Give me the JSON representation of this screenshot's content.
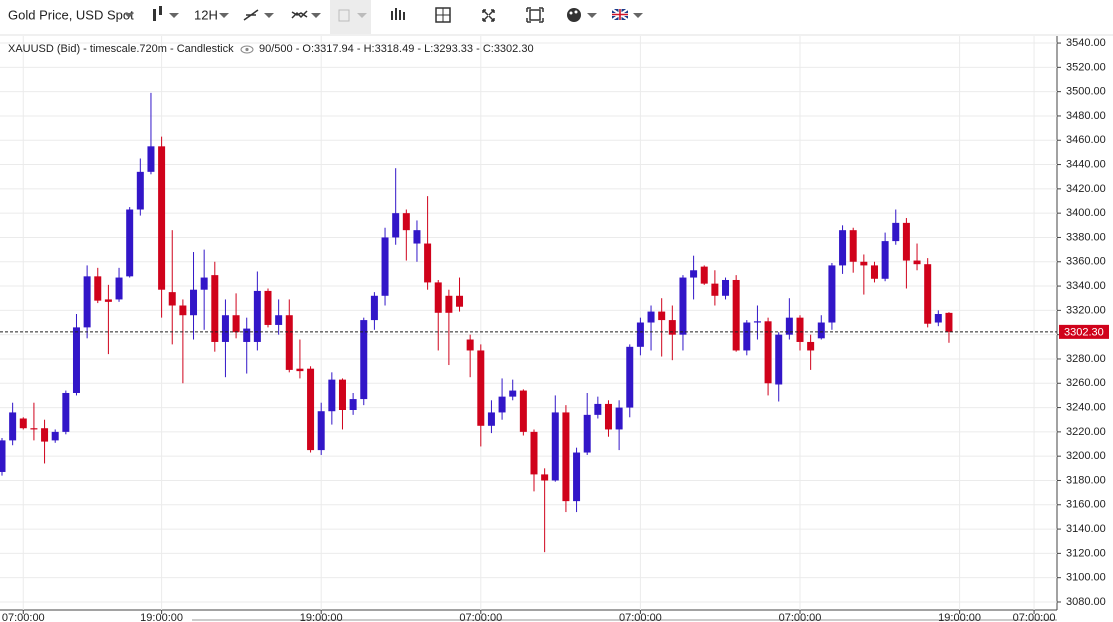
{
  "toolbar": {
    "title": "Gold Price, USD Spot",
    "timeframe": "12H"
  },
  "info": {
    "prefix": "XAUUSD (Bid) - timescale.720m - Candlestick",
    "stats": "90/500 - O:3317.94 - H:3318.49 - L:3293.33 - C:3302.30"
  },
  "chart_data": {
    "type": "candlestick",
    "categories": [
      null,
      null,
      "07:00:00",
      null,
      null,
      null,
      null,
      null,
      null,
      null,
      null,
      null,
      null,
      null,
      null,
      "19:00:00",
      null,
      null,
      null,
      null,
      null,
      null,
      null,
      null,
      null,
      null,
      null,
      null,
      null,
      null,
      "19:00:00",
      null,
      null,
      null,
      null,
      null,
      null,
      null,
      null,
      null,
      null,
      null,
      null,
      null,
      null,
      "07:00:00",
      null,
      null,
      null,
      null,
      null,
      null,
      null,
      null,
      null,
      null,
      null,
      null,
      null,
      null,
      "07:00:00",
      null,
      null,
      null,
      null,
      null,
      null,
      null,
      null,
      null,
      null,
      null,
      null,
      null,
      null,
      "07:00:00",
      null,
      null,
      null,
      null,
      null,
      null,
      null,
      null,
      null,
      null,
      null,
      null,
      null,
      null,
      "19:00:00",
      null,
      null,
      null,
      null,
      null,
      null,
      "07:00:00"
    ],
    "open": [
      3187,
      3213,
      3231,
      3223,
      3223,
      3213,
      3220,
      3252,
      3306,
      3348,
      3329,
      3329,
      3348,
      3403,
      3434,
      3455,
      3335,
      3324,
      3316,
      3337,
      3349,
      3294,
      3316,
      3294,
      3294,
      3336,
      3308,
      3316,
      3272,
      3272,
      3205,
      3237,
      3263,
      3238,
      3247,
      3312,
      3332,
      3380,
      3400,
      3375,
      3375,
      3343,
      3332,
      3332,
      3296,
      3287,
      3225,
      3236,
      3249,
      3254,
      3220,
      3185,
      3180,
      3236,
      3163,
      3203,
      3234,
      3243,
      3222,
      3240,
      3290,
      3310,
      3319,
      3312,
      3300,
      3347,
      3356,
      3342,
      3332,
      3345,
      3287,
      3310,
      3311,
      3259,
      3300,
      3314,
      3294,
      3297,
      3310,
      3357,
      3386,
      3360,
      3357,
      3346,
      3377,
      3392,
      3361,
      3358,
      3310,
      3317.94,
      null,
      null,
      null,
      null,
      null,
      null,
      null,
      null
    ],
    "high": [
      3215,
      3244,
      3232,
      3244,
      3230,
      3222,
      3254,
      3317,
      3357,
      3355,
      3341,
      3355,
      3405,
      3445,
      3499,
      3463,
      3386,
      3329,
      3368,
      3370,
      3360,
      3329,
      3334,
      3314,
      3352,
      3338,
      3329,
      3329,
      3296,
      3274,
      3244,
      3269,
      3264,
      3252,
      3314,
      3335,
      3388,
      3437,
      3403,
      3394,
      3414,
      3345,
      3337,
      3347,
      3300,
      3292,
      3246,
      3264,
      3263,
      3255,
      3222,
      3190,
      3250,
      3242,
      3207,
      3252,
      3249,
      3246,
      3246,
      3292,
      3314,
      3324,
      3330,
      3324,
      3349,
      3365,
      3357,
      3353,
      3347,
      3349,
      3312,
      3324,
      3314,
      3302,
      3330,
      3316,
      3300,
      3316,
      3359,
      3390,
      3388,
      3366,
      3360,
      3384,
      3403,
      3396,
      3375,
      3363,
      3320,
      3318.49,
      null,
      null,
      null,
      null,
      null,
      null,
      null,
      null
    ],
    "low": [
      3184,
      3209,
      3222,
      3213,
      3194,
      3211,
      3218,
      3250,
      3297,
      3326,
      3284,
      3327,
      3347,
      3398,
      3432,
      3314,
      3292,
      3260,
      3296,
      3304,
      3286,
      3265,
      3297,
      3268,
      3287,
      3306,
      3300,
      3269,
      3264,
      3203,
      3201,
      3226,
      3222,
      3234,
      3242,
      3304,
      3324,
      3374,
      3361,
      3360,
      3337,
      3287,
      3275,
      3319,
      3265,
      3208,
      3219,
      3230,
      3246,
      3217,
      3171,
      3121,
      3179,
      3154,
      3154,
      3201,
      3231,
      3216,
      3205,
      3232,
      3283,
      3287,
      3282,
      3279,
      3287,
      3329,
      3341,
      3324,
      3329,
      3286,
      3283,
      3296,
      3250,
      3245,
      3296,
      3287,
      3271,
      3296,
      3304,
      3350,
      3351,
      3333,
      3343,
      3344,
      3374,
      3338,
      3353,
      3306,
      3307,
      3293.33,
      null,
      null,
      null,
      null,
      null,
      null,
      null,
      null
    ],
    "close": [
      3213,
      3236,
      3223,
      3222,
      3212,
      3220,
      3252,
      3306,
      3348,
      3328,
      3327,
      3347,
      3403,
      3434,
      3455,
      3337,
      3324,
      3316,
      3337,
      3347,
      3294,
      3316,
      3302,
      3305,
      3336,
      3308,
      3316,
      3271,
      3270,
      3205,
      3237,
      3263,
      3238,
      3247,
      3312,
      3332,
      3380,
      3400,
      3386,
      3386,
      3343,
      3318,
      3318,
      3323,
      3287,
      3225,
      3236,
      3249,
      3254,
      3220,
      3185,
      3180,
      3236,
      3163,
      3203,
      3234,
      3243,
      3222,
      3240,
      3290,
      3310,
      3319,
      3312,
      3300,
      3347,
      3353,
      3342,
      3332,
      3345,
      3287,
      3310,
      3311,
      3260,
      3300,
      3314,
      3294,
      3287,
      3310,
      3357,
      3386,
      3360,
      3357,
      3346,
      3377,
      3392,
      3361,
      3358,
      3309,
      3317,
      3302.3,
      null,
      null,
      null,
      null,
      null,
      null,
      null,
      null
    ],
    "up_color": "#3216c8",
    "down_color": "#d0021b",
    "ylim": [
      3073.4,
      3545.8
    ],
    "yticks": [
      {
        "value": 3080,
        "label": "3080.00"
      },
      {
        "value": 3100,
        "label": "3100.00"
      },
      {
        "value": 3120,
        "label": "3120.00"
      },
      {
        "value": 3140,
        "label": "3140.00"
      },
      {
        "value": 3160,
        "label": "3160.00"
      },
      {
        "value": 3180,
        "label": "3180.00"
      },
      {
        "value": 3200,
        "label": "3200.00"
      },
      {
        "value": 3220,
        "label": "3220.00"
      },
      {
        "value": 3240,
        "label": "3240.00"
      },
      {
        "value": 3260,
        "label": "3260.00"
      },
      {
        "value": 3280,
        "label": "3280.00"
      },
      {
        "value": 3300,
        "label": "3300.00"
      },
      {
        "value": 3320,
        "label": "3320.00"
      },
      {
        "value": 3340,
        "label": "3340.00"
      },
      {
        "value": 3360,
        "label": "3360.00"
      },
      {
        "value": 3380,
        "label": "3380.00"
      },
      {
        "value": 3400,
        "label": "3400.00"
      },
      {
        "value": 3420,
        "label": "3420.00"
      },
      {
        "value": 3440,
        "label": "3440.00"
      },
      {
        "value": 3460,
        "label": "3460.00"
      },
      {
        "value": 3480,
        "label": "3480.00"
      },
      {
        "value": 3500,
        "label": "3500.00"
      },
      {
        "value": 3520,
        "label": "3520.00"
      },
      {
        "value": 3540,
        "label": "3540.00"
      }
    ],
    "grid": true,
    "last_price": 3302.3,
    "last_price_label": "3302.30",
    "last_price_color": "#d0021b"
  }
}
